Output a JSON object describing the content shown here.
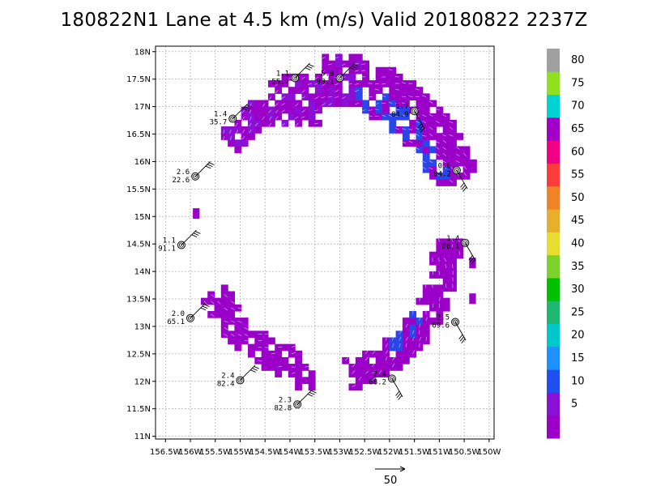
{
  "title": "180822N1 Lane at 4.5 km (m/s) Valid 20180822 2237Z",
  "map": {
    "lon_range": [
      -156.7,
      -149.9
    ],
    "lat_range": [
      10.95,
      18.1
    ],
    "lat_labels": [
      "18N",
      "17.5N",
      "17N",
      "16.5N",
      "16N",
      "15.5N",
      "15N",
      "14.5N",
      "14N",
      "13.5N",
      "13N",
      "12.5N",
      "12N",
      "11.5N",
      "11N"
    ],
    "lat_values": [
      18,
      17.5,
      17,
      16.5,
      16,
      15.5,
      15,
      14.5,
      14,
      13.5,
      13,
      12.5,
      12,
      11.5,
      11
    ],
    "lon_labels": [
      "156.5W",
      "156W",
      "155.5W",
      "155W",
      "154.5W",
      "154W",
      "153.5W",
      "153W",
      "152.5W",
      "152W",
      "151.5W",
      "151W",
      "150.5W",
      "150W"
    ],
    "lon_values": [
      -156.5,
      -156,
      -155.5,
      -155,
      -154.5,
      -154,
      -153.5,
      -153,
      -152.5,
      -152,
      -151.5,
      -151,
      -150.5,
      -150
    ],
    "grid": true,
    "center": {
      "lon": -153.45,
      "lat": 14.55
    },
    "ring_radius_deg": 2.55
  },
  "stations": [
    {
      "lon": -153.9,
      "lat": 17.52,
      "top": "1.1",
      "bottom": "55.7"
    },
    {
      "lon": -153.0,
      "lat": 17.52,
      "top": "5.9",
      "bottom": "98.1"
    },
    {
      "lon": -155.15,
      "lat": 16.78,
      "top": "1.4",
      "bottom": "35.7"
    },
    {
      "lon": -151.5,
      "lat": 16.92,
      "top": "1.7",
      "bottom": "84.9"
    },
    {
      "lon": -155.9,
      "lat": 15.73,
      "top": "2.6",
      "bottom": "22.6"
    },
    {
      "lon": -150.65,
      "lat": 15.84,
      "top": "0.6",
      "bottom": "94.2"
    },
    {
      "lon": -156.18,
      "lat": 14.48,
      "top": "1.1",
      "bottom": "91.1"
    },
    {
      "lon": -150.48,
      "lat": 14.52,
      "top": "1.4",
      "bottom": "86.1"
    },
    {
      "lon": -156.0,
      "lat": 13.15,
      "top": "2.0",
      "bottom": "65.1"
    },
    {
      "lon": -150.68,
      "lat": 13.08,
      "top": "2.5",
      "bottom": "69.6"
    },
    {
      "lon": -155.0,
      "lat": 12.02,
      "top": "2.4",
      "bottom": "82.4"
    },
    {
      "lon": -151.95,
      "lat": 12.05,
      "top": "2.4",
      "bottom": "68.2"
    },
    {
      "lon": -153.85,
      "lat": 11.58,
      "top": "2.3",
      "bottom": "82.8"
    }
  ],
  "colorbar": {
    "labels": [
      "5",
      "10",
      "15",
      "20",
      "25",
      "30",
      "35",
      "40",
      "45",
      "50",
      "55",
      "60",
      "65",
      "70",
      "75",
      "80"
    ],
    "colors": [
      "#9b00c8",
      "#8a10d6",
      "#1f4ff0",
      "#1e90ff",
      "#00c8c8",
      "#20b870",
      "#00c000",
      "#7cd22a",
      "#e6dc32",
      "#e6af2d",
      "#f08228",
      "#fa3c3c",
      "#f00082",
      "#a000c8",
      "#00d2d2",
      "#90e020",
      "#a0a0a0"
    ]
  },
  "reference_vector": {
    "label": "50"
  }
}
